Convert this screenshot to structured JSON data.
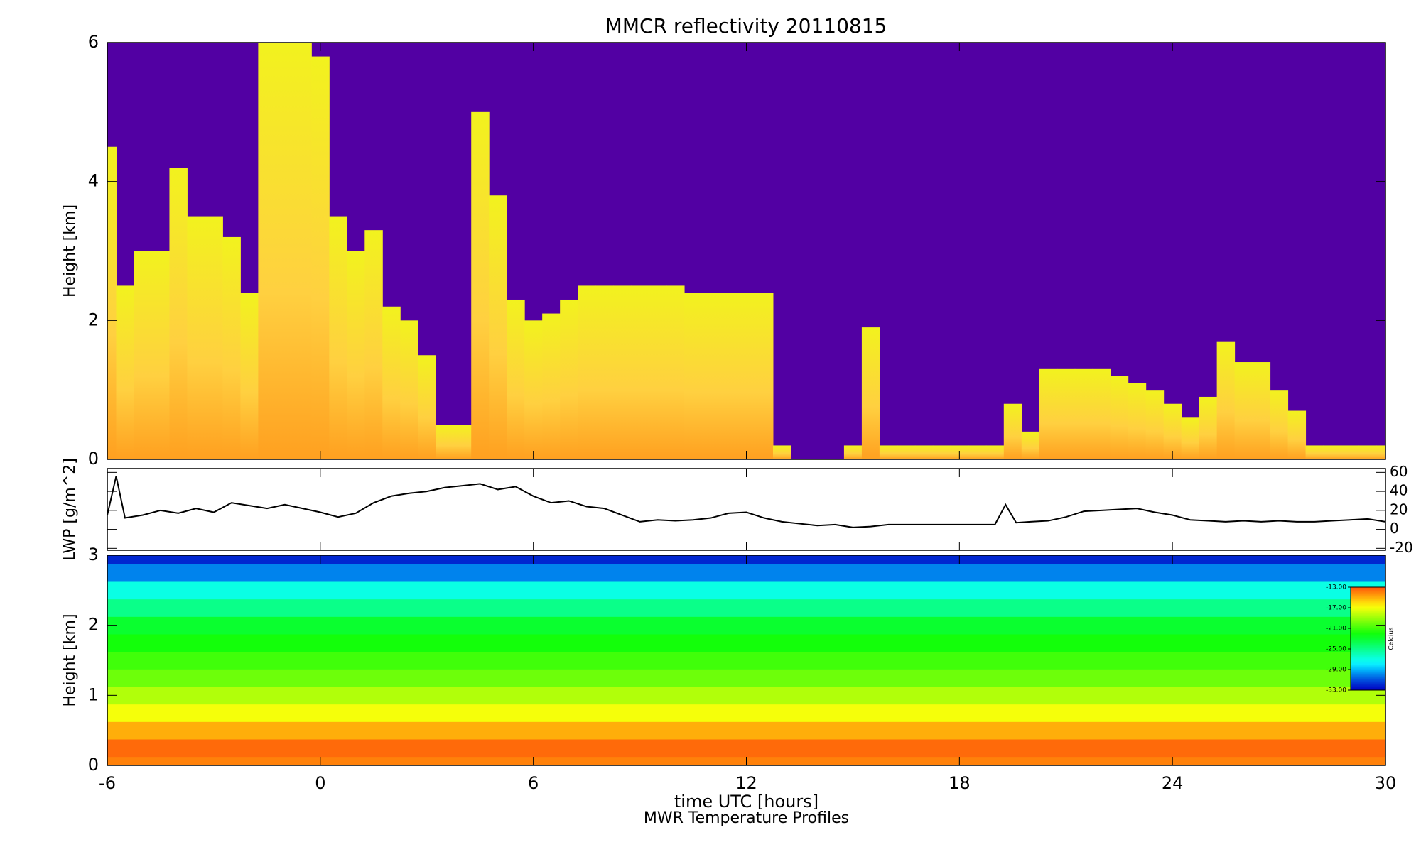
{
  "chart_data": [
    {
      "type": "cloud",
      "title": "MMCR reflectivity     20110815",
      "ylabel": "Height [km]",
      "x": [
        -6,
        -5.5,
        -5,
        -4.5,
        -4,
        -3.5,
        -3,
        -2.5,
        -2,
        -1.5,
        -1,
        -0.5,
        0,
        0.5,
        1,
        1.5,
        2,
        2.5,
        3,
        3.5,
        4,
        4.5,
        5,
        5.5,
        6,
        6.5,
        7,
        7.5,
        8,
        8.5,
        9,
        9.5,
        10,
        10.5,
        11,
        11.5,
        12,
        12.5,
        13,
        13.5,
        14,
        14.5,
        15,
        15.5,
        16,
        16.5,
        17,
        17.5,
        18,
        18.5,
        19,
        19.5,
        20,
        20.5,
        21,
        21.5,
        22,
        22.5,
        23,
        23.5,
        24,
        24.5,
        25,
        25.5,
        26,
        26.5,
        27,
        27.5,
        28,
        28.5,
        29,
        29.5,
        30
      ],
      "values": [
        4.5,
        2.5,
        3,
        3,
        4.2,
        3.5,
        3.5,
        3.2,
        2.4,
        6,
        6,
        6,
        5.8,
        3.5,
        3,
        3.3,
        2.2,
        2,
        1.5,
        0.5,
        0.5,
        5,
        3.8,
        2.3,
        2,
        2.1,
        2.3,
        2.5,
        2.5,
        2.5,
        2.5,
        2.5,
        2.5,
        2.4,
        2.4,
        2.4,
        2.4,
        2.4,
        0.2,
        null,
        null,
        null,
        0.2,
        1.9,
        0.2,
        0.2,
        0.2,
        0.2,
        0.2,
        0.2,
        0.2,
        0.8,
        0.4,
        1.3,
        1.3,
        1.3,
        1.3,
        1.2,
        1.1,
        1.0,
        0.8,
        0.6,
        0.9,
        1.7,
        1.4,
        1.4,
        1.0,
        0.7,
        0.2,
        0.2,
        0.2,
        0.2,
        0.2
      ],
      "color": "#f2f21e",
      "background": "#5200a3",
      "xlim": [
        -6,
        30
      ],
      "xticks": [
        -6,
        0,
        6,
        12,
        18,
        24,
        30
      ],
      "ylim": [
        0,
        6
      ],
      "yticks": [
        0,
        2,
        4,
        6
      ]
    },
    {
      "type": "line",
      "ylabel": "LWP [g/m^2]",
      "x": [
        -6,
        -5.75,
        -5.5,
        -5,
        -4.5,
        -4,
        -3.5,
        -3,
        -2.5,
        -2,
        -1.5,
        -1,
        -0.5,
        0,
        0.5,
        1,
        1.5,
        2,
        2.5,
        3,
        3.5,
        4,
        4.5,
        5,
        5.5,
        6,
        6.5,
        7,
        7.5,
        8,
        8.5,
        9,
        9.5,
        10,
        10.5,
        11,
        11.5,
        12,
        12.5,
        13,
        13.5,
        14,
        14.5,
        15,
        15.5,
        16,
        19,
        19.3,
        19.6,
        20,
        20.5,
        21,
        21.5,
        22,
        22.5,
        23,
        23.5,
        24,
        24.5,
        25,
        25.5,
        26,
        26.5,
        27,
        27.5,
        28,
        28.5,
        29,
        29.5,
        30
      ],
      "values": [
        15,
        56,
        12,
        15,
        20,
        17,
        22,
        18,
        28,
        25,
        22,
        26,
        22,
        18,
        13,
        17,
        28,
        35,
        38,
        40,
        44,
        46,
        48,
        42,
        45,
        35,
        28,
        30,
        24,
        22,
        15,
        8,
        10,
        9,
        10,
        12,
        17,
        18,
        12,
        8,
        6,
        4,
        5,
        2,
        3,
        5,
        5,
        26,
        7,
        8,
        9,
        13,
        19,
        20,
        21,
        22,
        18,
        15,
        10,
        9,
        8,
        9,
        8,
        9,
        8,
        8,
        9,
        10,
        11,
        8
      ],
      "color": "#000000",
      "xlim": [
        -6,
        30
      ],
      "xticks": [
        -6,
        0,
        6,
        12,
        18,
        24,
        30
      ],
      "ylim": [
        -22,
        64
      ],
      "yticks": [
        -20,
        0,
        20,
        40,
        60
      ]
    },
    {
      "type": "heatmap",
      "ylabel": "Height [km]",
      "xlabel": "time UTC [hours]",
      "subtitle": "MWR Temperature Profiles",
      "y": [
        0,
        0.25,
        0.5,
        0.75,
        1,
        1.25,
        1.5,
        1.75,
        2,
        2.25,
        2.5,
        2.75,
        3
      ],
      "values": [
        -14,
        -13.5,
        -15,
        -17,
        -18.5,
        -20,
        -21,
        -22,
        -23,
        -25,
        -27,
        -30,
        -32
      ],
      "clim": [
        -33,
        -13
      ],
      "colorbar_label": "Celcius",
      "cticks": [
        {
          "value": -13,
          "label": "-13.00"
        },
        {
          "value": -17,
          "label": "-17.00"
        },
        {
          "value": -21,
          "label": "-21.00"
        },
        {
          "value": -25,
          "label": "-25.00"
        },
        {
          "value": -29,
          "label": "-29.00"
        },
        {
          "value": -33,
          "label": "-33.00"
        }
      ],
      "xlim": [
        -6,
        30
      ],
      "xticks": [
        -6,
        0,
        6,
        12,
        18,
        24,
        30
      ],
      "ylim": [
        0,
        3
      ],
      "yticks": [
        0,
        1,
        2,
        3
      ]
    }
  ]
}
